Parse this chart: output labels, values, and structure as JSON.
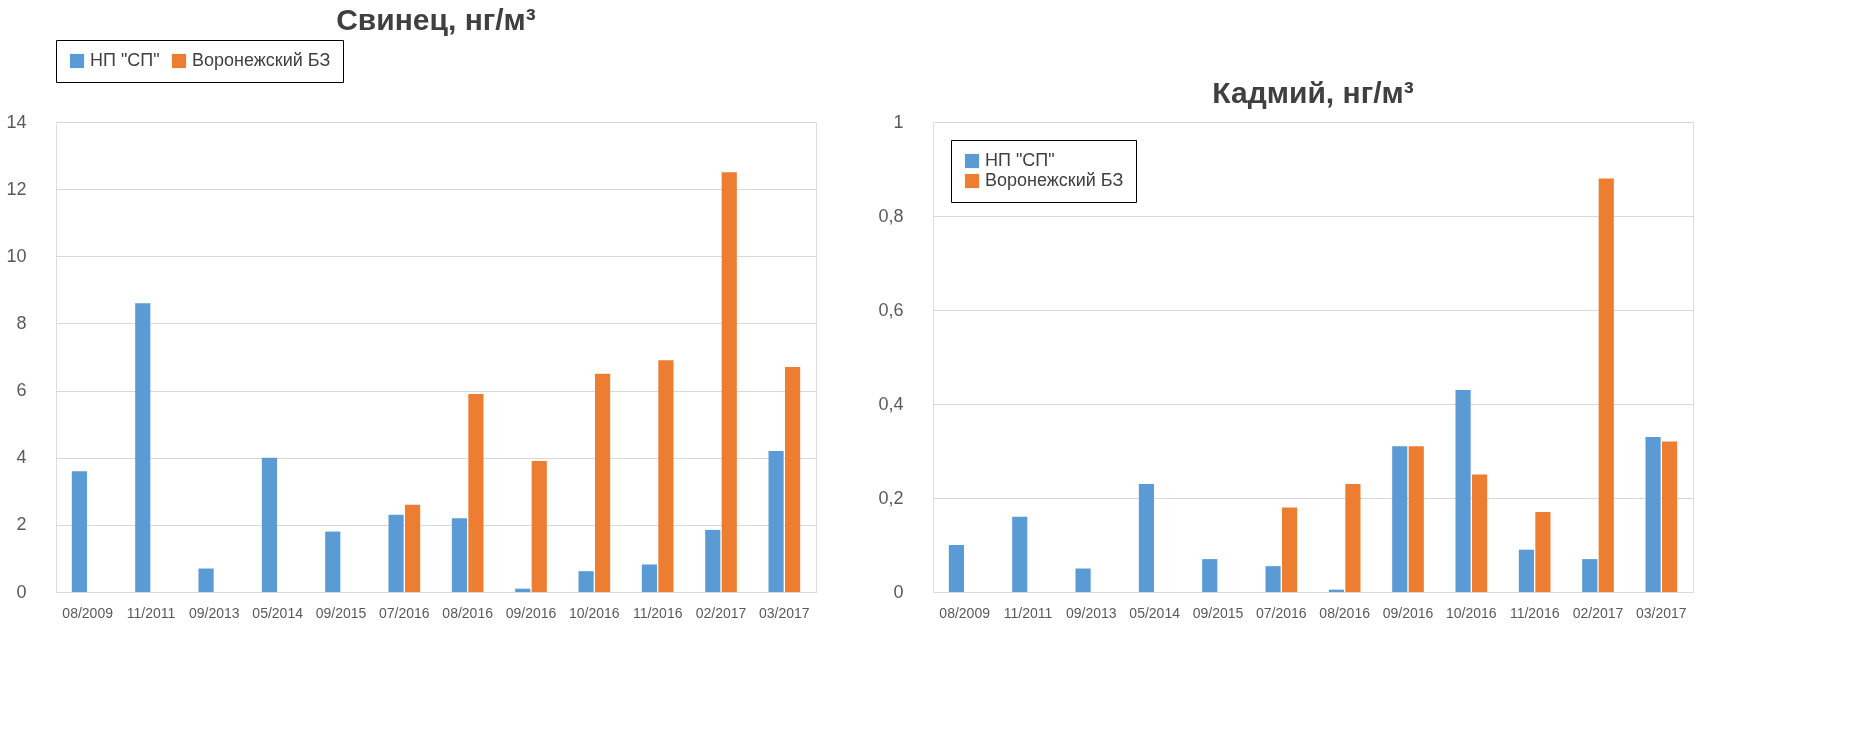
{
  "chart_data": [
    {
      "type": "bar",
      "title": "Свинец, нг/м³",
      "categories": [
        "08/2009",
        "11/2011",
        "09/2013",
        "05/2014",
        "09/2015",
        "07/2016",
        "08/2016",
        "09/2016",
        "10/2016",
        "11/2016",
        "02/2017",
        "03/2017"
      ],
      "series": [
        {
          "name": "НП \"СП\"",
          "color": "#5b9bd5",
          "values": [
            3.6,
            8.6,
            0.7,
            4.0,
            1.8,
            2.3,
            2.2,
            0.1,
            0.62,
            0.82,
            1.85,
            4.2
          ]
        },
        {
          "name": "Воронежский БЗ",
          "color": "#ed7d31",
          "values": [
            null,
            null,
            null,
            null,
            null,
            2.6,
            5.9,
            3.9,
            6.5,
            6.9,
            12.5,
            6.7
          ]
        }
      ],
      "ylim": [
        0,
        14
      ],
      "yticks": [
        0,
        2,
        4,
        6,
        8,
        10,
        12,
        14
      ],
      "grid": "y",
      "legend": "top"
    },
    {
      "type": "bar",
      "title": "Кадмий, нг/м³",
      "categories": [
        "08/2009",
        "11/2011",
        "09/2013",
        "05/2014",
        "09/2015",
        "07/2016",
        "08/2016",
        "09/2016",
        "10/2016",
        "11/2016",
        "02/2017",
        "03/2017"
      ],
      "series": [
        {
          "name": "НП \"СП\"",
          "color": "#5b9bd5",
          "values": [
            0.1,
            0.16,
            0.05,
            0.23,
            0.07,
            0.055,
            0.005,
            0.31,
            0.43,
            0.09,
            0.07,
            0.33
          ]
        },
        {
          "name": "Воронежский БЗ",
          "color": "#ed7d31",
          "values": [
            null,
            null,
            null,
            null,
            null,
            0.18,
            0.23,
            0.31,
            0.25,
            0.17,
            0.88,
            0.32
          ]
        }
      ],
      "ylim": [
        0,
        1
      ],
      "yticks": [
        0,
        {
          "value": 0.2,
          "label": "0,2"
        },
        {
          "value": 0.4,
          "label": "0,4"
        },
        {
          "value": 0.6,
          "label": "0,6"
        },
        {
          "value": 0.8,
          "label": "0,8"
        },
        1
      ],
      "grid": "y",
      "legend": "top left"
    }
  ]
}
